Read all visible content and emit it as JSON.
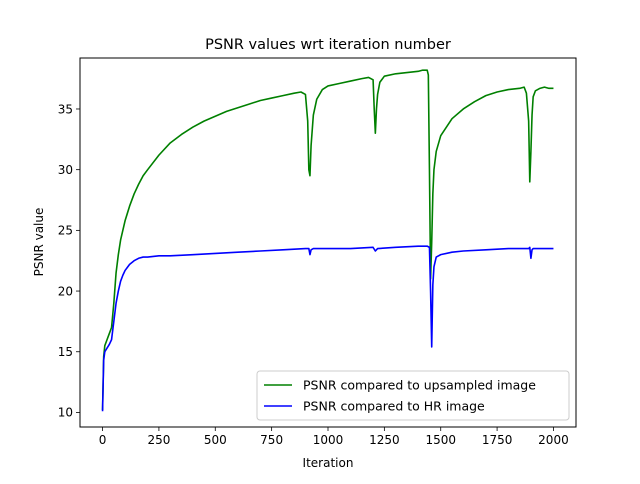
{
  "chart_data": {
    "type": "line",
    "title": "PSNR values wrt iteration number",
    "xlabel": "Iteration",
    "ylabel": "PSNR value",
    "xlim": [
      -100,
      2100
    ],
    "ylim": [
      8.8,
      39.2
    ],
    "xticks": [
      0,
      250,
      500,
      750,
      1000,
      1250,
      1500,
      1750,
      2000
    ],
    "yticks": [
      10,
      15,
      20,
      25,
      30,
      35
    ],
    "grid": false,
    "legend_position": "lower-right",
    "series": [
      {
        "name": "PSNR compared to upsampled image",
        "color": "#008000",
        "x": [
          0,
          5,
          10,
          20,
          30,
          40,
          50,
          60,
          70,
          80,
          90,
          100,
          120,
          140,
          160,
          180,
          200,
          250,
          300,
          350,
          400,
          450,
          500,
          550,
          600,
          650,
          700,
          750,
          800,
          850,
          880,
          900,
          910,
          915,
          920,
          925,
          935,
          950,
          975,
          1000,
          1050,
          1100,
          1150,
          1180,
          1200,
          1205,
          1210,
          1215,
          1220,
          1230,
          1250,
          1300,
          1350,
          1400,
          1420,
          1440,
          1445,
          1450,
          1455,
          1460,
          1465,
          1470,
          1480,
          1500,
          1550,
          1600,
          1650,
          1700,
          1750,
          1800,
          1850,
          1870,
          1880,
          1890,
          1895,
          1900,
          1905,
          1910,
          1920,
          1940,
          1960,
          1980,
          2000
        ],
        "y": [
          10.2,
          14.6,
          15.5,
          16.0,
          16.5,
          17.0,
          19.0,
          21.5,
          23.0,
          24.2,
          25.0,
          25.8,
          27.0,
          28.0,
          28.8,
          29.5,
          30.0,
          31.2,
          32.2,
          32.9,
          33.5,
          34.0,
          34.4,
          34.8,
          35.1,
          35.4,
          35.7,
          35.9,
          36.1,
          36.3,
          36.4,
          36.2,
          34.0,
          30.0,
          29.5,
          32.0,
          34.5,
          35.8,
          36.6,
          36.9,
          37.1,
          37.3,
          37.5,
          37.6,
          37.4,
          35.0,
          33.0,
          35.0,
          36.2,
          37.2,
          37.7,
          37.9,
          38.0,
          38.1,
          38.2,
          38.2,
          37.8,
          30.0,
          21.0,
          24.0,
          28.0,
          30.0,
          31.5,
          32.8,
          34.2,
          35.0,
          35.6,
          36.1,
          36.4,
          36.6,
          36.7,
          36.8,
          36.3,
          34.0,
          29.0,
          31.5,
          34.5,
          36.0,
          36.5,
          36.7,
          36.8,
          36.7,
          36.7
        ]
      },
      {
        "name": "PSNR compared to HR image",
        "color": "#0000ff",
        "x": [
          0,
          5,
          10,
          20,
          30,
          40,
          50,
          60,
          70,
          80,
          90,
          100,
          120,
          140,
          160,
          180,
          200,
          250,
          300,
          400,
          500,
          600,
          700,
          800,
          900,
          915,
          920,
          925,
          935,
          1000,
          1100,
          1200,
          1210,
          1220,
          1300,
          1400,
          1440,
          1450,
          1455,
          1460,
          1465,
          1470,
          1480,
          1500,
          1550,
          1600,
          1700,
          1800,
          1890,
          1895,
          1900,
          1905,
          1910,
          1950,
          2000
        ],
        "y": [
          10.1,
          14.3,
          15.0,
          15.3,
          15.6,
          16.0,
          17.5,
          19.0,
          20.0,
          20.8,
          21.3,
          21.7,
          22.2,
          22.5,
          22.7,
          22.8,
          22.8,
          22.9,
          22.9,
          23.0,
          23.1,
          23.2,
          23.3,
          23.4,
          23.5,
          23.5,
          23.0,
          23.4,
          23.5,
          23.5,
          23.5,
          23.6,
          23.3,
          23.5,
          23.6,
          23.7,
          23.7,
          23.6,
          20.0,
          15.4,
          20.5,
          22.0,
          22.8,
          23.0,
          23.2,
          23.3,
          23.4,
          23.5,
          23.5,
          23.6,
          22.7,
          23.4,
          23.5,
          23.5,
          23.5
        ]
      }
    ]
  }
}
